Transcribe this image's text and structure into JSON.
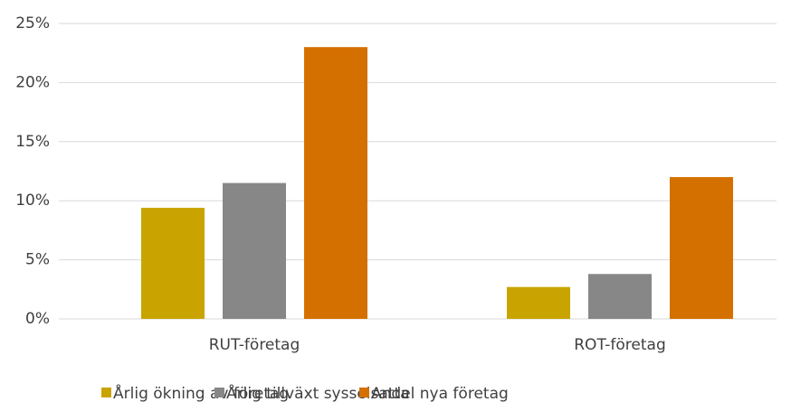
{
  "chart_data": {
    "type": "bar",
    "categories": [
      "RUT-företag",
      "ROT-företag"
    ],
    "series": [
      {
        "name": "Årlig ökning av företag",
        "color": "#c9a400",
        "values": [
          9.4,
          2.7
        ]
      },
      {
        "name": "Årlig tillväxt sysselsatta",
        "color": "#878787",
        "values": [
          11.5,
          3.8
        ]
      },
      {
        "name": "Andel nya företag",
        "color": "#d47000",
        "values": [
          23.0,
          12.0
        ]
      }
    ],
    "ylim": [
      0,
      25
    ],
    "yticks": [
      {
        "value": 0,
        "label": "0%"
      },
      {
        "value": 5,
        "label": "5%"
      },
      {
        "value": 10,
        "label": "10%"
      },
      {
        "value": 15,
        "label": "15%"
      },
      {
        "value": 20,
        "label": "20%"
      },
      {
        "value": 25,
        "label": "25%"
      }
    ],
    "grid": true,
    "legend": "bottom"
  }
}
